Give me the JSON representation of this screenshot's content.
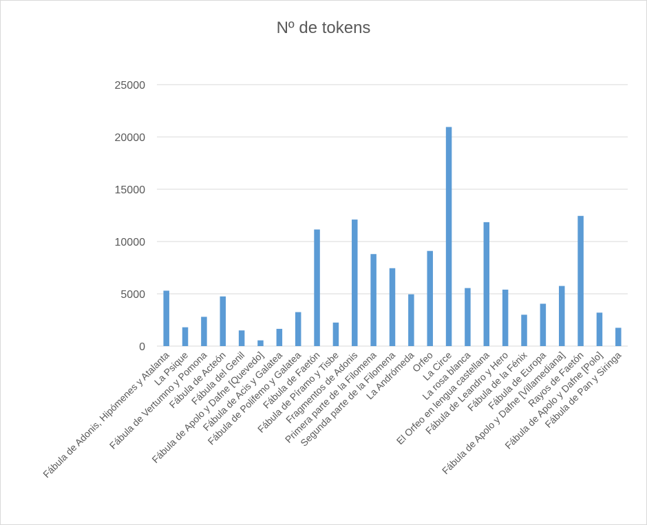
{
  "chart_data": {
    "type": "bar",
    "title": "Nº de tokens",
    "xlabel": "",
    "ylabel": "",
    "ylim": [
      0,
      25000
    ],
    "yticks": [
      0,
      5000,
      10000,
      15000,
      20000,
      25000
    ],
    "grid": true,
    "legend": "none",
    "bar_color": "#5b9bd5",
    "grid_color": "#d9d9d9",
    "categories": [
      "Fábula de Adonis, Hipómenes y Atalanta",
      "La Psique",
      "Fábula de Vertumno y Pomona",
      "Fábula de Acteón",
      "Fábula del Genil",
      "Fábula de Apolo y Dafne [Quevedo]",
      "Fábula de Acis y Galatea",
      "Fábula de Polifemo y Galatea",
      "Fábula de Faetón",
      "Fábula de Píramo y Tisbe",
      "Fragmentos de Adonis",
      "Primera parte de la Filomena",
      "Segunda parte de la Filomena",
      "La Andrómeda",
      "Orfeo",
      "La Circe",
      "La rosa blanca",
      "El Orfeo en lengua castellana",
      "Fábula de Leandro y Hero",
      "Fábula de la Fénix",
      "Fábula de Europa",
      "Fábula de Apolo y Dafne [Villamediana]",
      "Rayos de Faetón",
      "Fábula de Apolo y Dafne [Polo]",
      "Fábula de Pan y Siringa"
    ],
    "values": [
      5300,
      1800,
      2800,
      4750,
      1500,
      550,
      1650,
      3250,
      11150,
      2250,
      12100,
      8800,
      7450,
      4950,
      9100,
      20950,
      5550,
      11850,
      5400,
      3000,
      4050,
      5750,
      12450,
      3200,
      1750
    ]
  }
}
